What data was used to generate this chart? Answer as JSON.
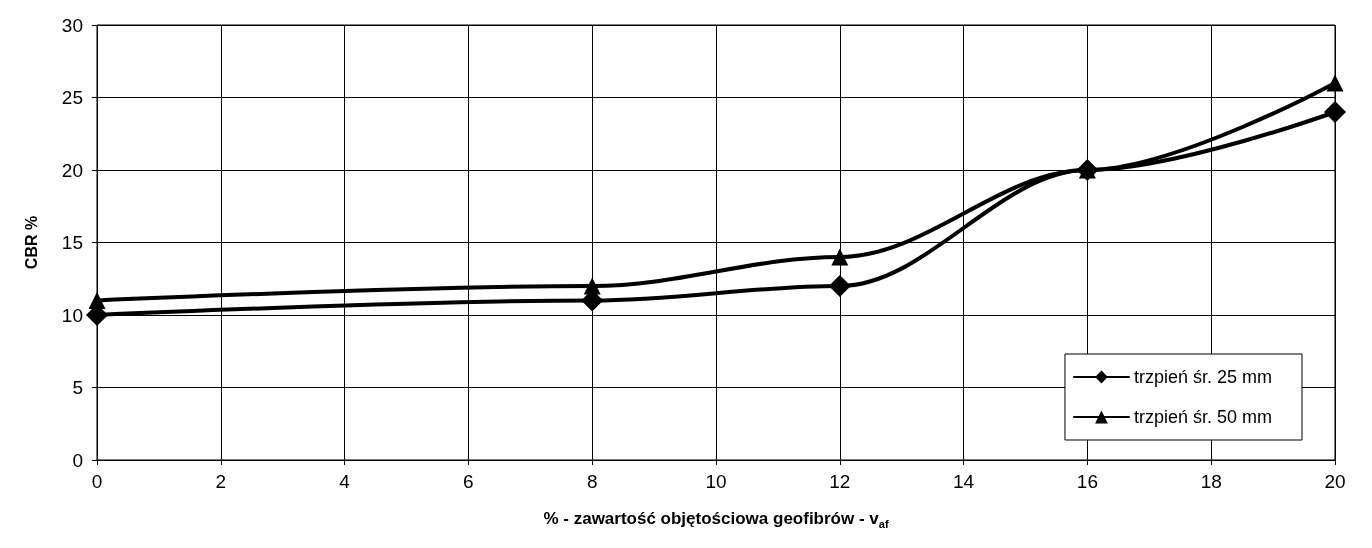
{
  "chart_data": {
    "type": "line",
    "xlabel": "% - zawartość objętościowa geofibrów - v$_{af}$",
    "ylabel": "CBR %",
    "x": [
      0,
      8,
      12,
      16,
      20
    ],
    "series": [
      {
        "name": "trzpień śr. 25 mm",
        "color": "#000000",
        "marker": "diamond",
        "values": [
          10,
          11,
          12,
          20,
          24
        ]
      },
      {
        "name": "trzpień śr. 50 mm",
        "color": "#000000",
        "marker": "triangle",
        "values": [
          11,
          12,
          14,
          20,
          26
        ]
      }
    ],
    "xlim": [
      0,
      20
    ],
    "xticks": [
      0,
      2,
      4,
      6,
      8,
      10,
      12,
      14,
      16,
      18,
      20
    ],
    "ylim": [
      0,
      30
    ],
    "yticks": [
      0,
      5,
      10,
      15,
      20,
      25,
      30
    ],
    "grid": true,
    "legend": "bottom right",
    "line_style": "solid"
  }
}
